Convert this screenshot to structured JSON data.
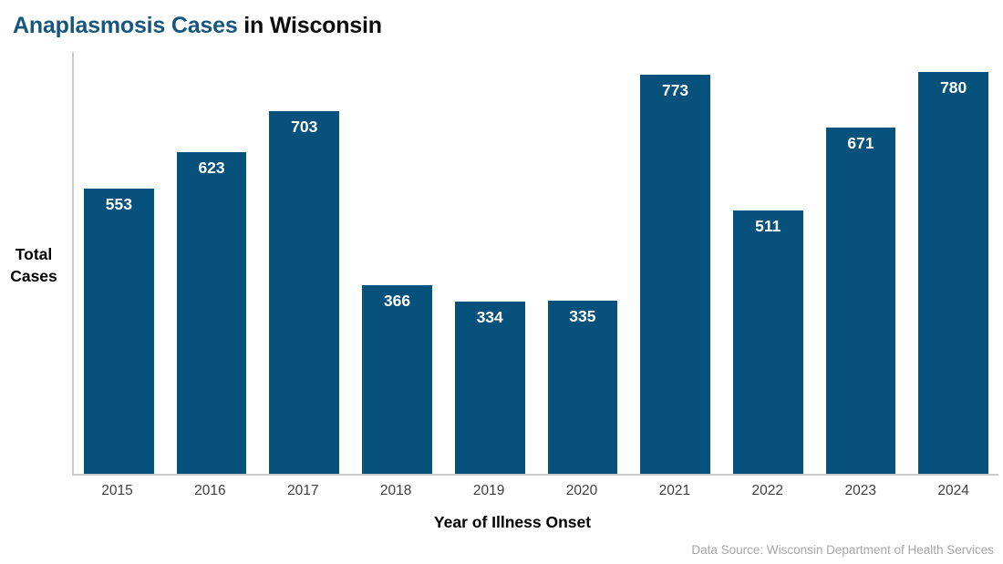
{
  "title": {
    "accent": "Anaplasmosis Cases",
    "rest": " in Wisconsin"
  },
  "chart_data": {
    "type": "bar",
    "title": "Anaplasmosis Cases in Wisconsin",
    "categories": [
      "2015",
      "2016",
      "2017",
      "2018",
      "2019",
      "2020",
      "2021",
      "2022",
      "2023",
      "2024"
    ],
    "values": [
      553,
      623,
      703,
      366,
      334,
      335,
      773,
      511,
      671,
      780
    ],
    "xlabel": "Year of Illness Onset",
    "ylabel": "Total Cases",
    "ylabel_lines": [
      "Total",
      "Cases"
    ],
    "ylim": [
      0,
      818
    ],
    "grid": false,
    "legend": "none",
    "value_label_position": "inside-top"
  },
  "source_note": "Data Source: Wisconsin Department of Health Services",
  "colors": {
    "bar": "#07527C",
    "title_accent": "#16577F",
    "axis_line": "#CCCCCC",
    "tick_label": "#3F3F3F",
    "value_label": "#FFFFFF",
    "source_text": "#A6A6A6"
  }
}
